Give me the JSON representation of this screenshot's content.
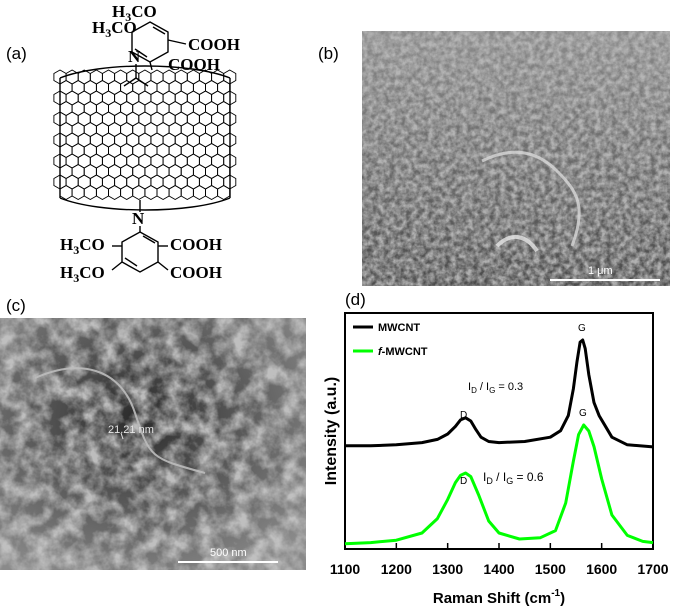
{
  "figure": {
    "panels": {
      "a": {
        "label": "(a)",
        "chemistry": {
          "top_substituents": [
            "H3CO",
            "H3CO",
            "COOH",
            "COOH"
          ],
          "bottom_substituents": [
            "H3CO",
            "COOH",
            "H3CO",
            "COOH"
          ],
          "nitrogen": "N"
        }
      },
      "b": {
        "label": "(b)",
        "scale_bar": "1 μm"
      },
      "c": {
        "label": "(c)",
        "scale_bar": "500 nm",
        "measurement": "21.21 nm"
      },
      "d": {
        "label": "(d)"
      }
    }
  },
  "chart_data": {
    "type": "line",
    "xlabel": "Raman Shift (cm",
    "xlabel_sup": "-1",
    "xlabel_close": ")",
    "ylabel": "Intensity (a.u.)",
    "xlim": [
      1100,
      1700
    ],
    "x_ticks": [
      1100,
      1200,
      1300,
      1400,
      1500,
      1600,
      1700
    ],
    "y_ticks_shown": false,
    "legend_position": "top-left",
    "series": [
      {
        "name": "MWCNT",
        "color": "#000000",
        "x": [
          1100,
          1150,
          1200,
          1250,
          1280,
          1300,
          1315,
          1325,
          1335,
          1345,
          1355,
          1365,
          1380,
          1400,
          1450,
          1500,
          1520,
          1535,
          1545,
          1552,
          1558,
          1563,
          1568,
          1575,
          1585,
          1595,
          1605,
          1620,
          1650,
          1700
        ],
        "y": [
          0.02,
          0.02,
          0.03,
          0.05,
          0.08,
          0.13,
          0.2,
          0.26,
          0.28,
          0.25,
          0.17,
          0.1,
          0.06,
          0.05,
          0.06,
          0.1,
          0.16,
          0.3,
          0.55,
          0.8,
          0.98,
          1.0,
          0.92,
          0.68,
          0.42,
          0.3,
          0.22,
          0.1,
          0.03,
          0.01
        ],
        "ratio_text": "I",
        "ratio_sub1": "D",
        "ratio_mid": " / I",
        "ratio_sub2": "G",
        "ratio_value": " = 0.3"
      },
      {
        "name": "f-MWCNT",
        "name_prefix": "f",
        "name_rest": "-MWCNT",
        "color": "#00ff00",
        "x": [
          1100,
          1150,
          1200,
          1250,
          1280,
          1300,
          1315,
          1325,
          1335,
          1345,
          1360,
          1380,
          1400,
          1440,
          1480,
          1510,
          1530,
          1545,
          1555,
          1565,
          1575,
          1585,
          1600,
          1620,
          1650,
          1680,
          1700
        ],
        "y": [
          0.01,
          0.02,
          0.04,
          0.1,
          0.22,
          0.38,
          0.52,
          0.58,
          0.6,
          0.57,
          0.42,
          0.2,
          0.1,
          0.05,
          0.06,
          0.12,
          0.35,
          0.7,
          0.92,
          1.0,
          0.95,
          0.82,
          0.55,
          0.25,
          0.08,
          0.03,
          0.02
        ],
        "ratio_text": "I",
        "ratio_sub1": "D",
        "ratio_mid": " / I",
        "ratio_sub2": "G",
        "ratio_value": " = 0.6"
      }
    ],
    "annotations": [
      "D",
      "G",
      "D",
      "G"
    ]
  }
}
